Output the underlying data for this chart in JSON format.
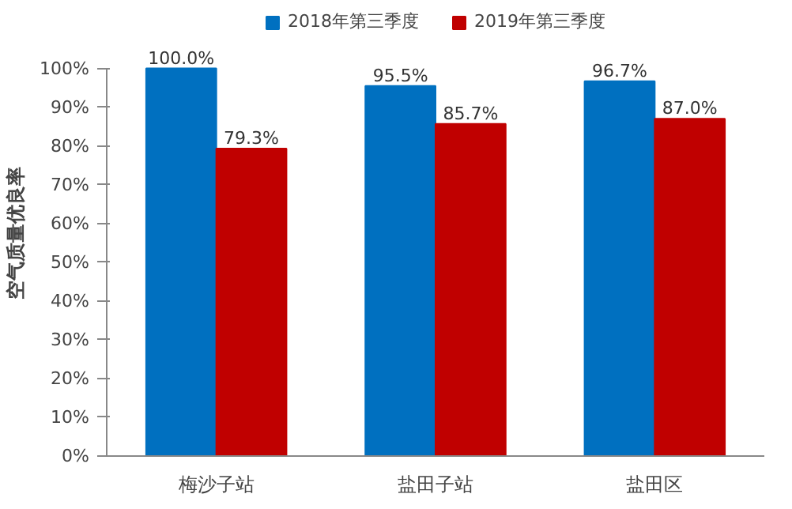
{
  "chart_data": {
    "type": "bar",
    "ylabel": "空气质量优良率",
    "categories": [
      "梅沙子站",
      "盐田子站",
      "盐田区"
    ],
    "series": [
      {
        "name": "2018年第三季度",
        "color": "#0070c0",
        "values": [
          100.0,
          95.5,
          96.7
        ],
        "value_labels": [
          "100.0%",
          "95.5%",
          "96.7%"
        ]
      },
      {
        "name": "2019年第三季度",
        "color": "#c00000",
        "values": [
          79.3,
          85.7,
          87.0
        ],
        "value_labels": [
          "79.3%",
          "85.7%",
          "87.0%"
        ]
      }
    ],
    "ylim": [
      0,
      100
    ],
    "yticks": [
      {
        "value": 0,
        "label": "0%"
      },
      {
        "value": 10,
        "label": "10%"
      },
      {
        "value": 20,
        "label": "20%"
      },
      {
        "value": 30,
        "label": "30%"
      },
      {
        "value": 40,
        "label": "40%"
      },
      {
        "value": 50,
        "label": "50%"
      },
      {
        "value": 60,
        "label": "60%"
      },
      {
        "value": 70,
        "label": "70%"
      },
      {
        "value": 80,
        "label": "80%"
      },
      {
        "value": 90,
        "label": "90%"
      },
      {
        "value": 100,
        "label": "100%"
      }
    ],
    "grid": false,
    "legend": "top"
  }
}
